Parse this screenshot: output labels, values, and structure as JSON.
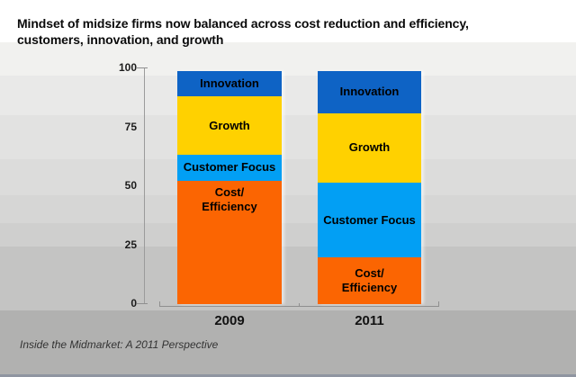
{
  "title": {
    "text": "Mindset of midsize firms now balanced across cost reduction and efficiency,\ncustomers, innovation, and growth"
  },
  "footer": {
    "source_note": "Inside the Midmarket: A 2011 Perspective"
  },
  "chart_data": {
    "type": "bar",
    "variant": "stacked-100-percent",
    "title": "Mindset of midsize firms now balanced across cost reduction and efficiency, customers, innovation, and growth",
    "categories": [
      "2009",
      "2011"
    ],
    "series": [
      {
        "name": "Innovation",
        "label": "Innovation",
        "color": "#0e63c5",
        "values": [
          11,
          18
        ]
      },
      {
        "name": "Growth",
        "label": "Growth",
        "color": "#ffd100",
        "values": [
          25,
          30
        ]
      },
      {
        "name": "Customer Focus",
        "label": "Customer Focus",
        "color": "#029ff4",
        "values": [
          11,
          32
        ]
      },
      {
        "name": "Cost/Efficiency",
        "label": "Cost/\nEfficiency",
        "color": "#fb6502",
        "values": [
          53,
          20
        ]
      }
    ],
    "stack_order_top_to_bottom": [
      "Innovation",
      "Growth",
      "Customer Focus",
      "Cost/Efficiency"
    ],
    "ylim": [
      0,
      100
    ],
    "yticks": [
      100,
      75,
      50,
      25,
      0
    ],
    "xlabel": "",
    "ylabel": "",
    "grid": "off",
    "legend": "labels-inside-segments"
  }
}
